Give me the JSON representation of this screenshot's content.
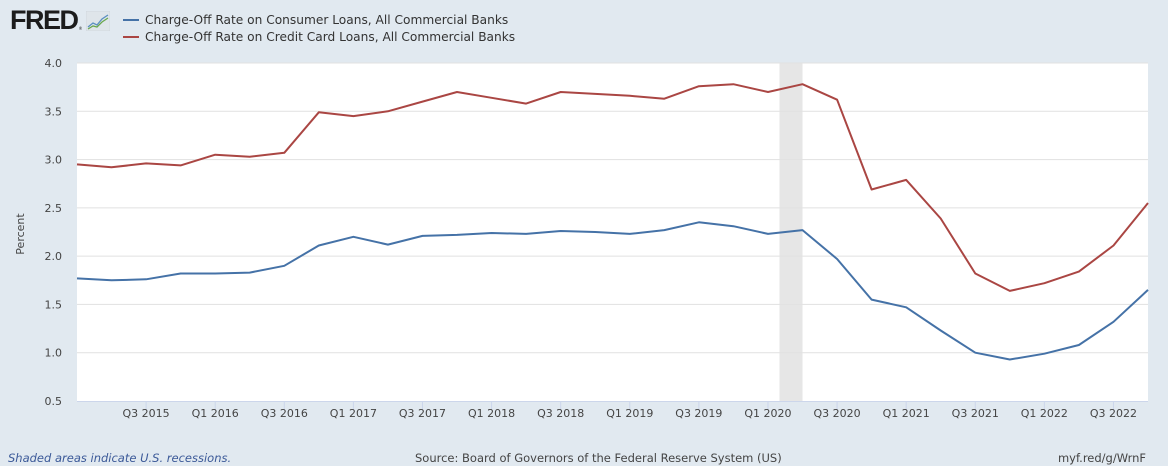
{
  "brand": {
    "logo_text": "FRED",
    "logo_reg": "®"
  },
  "colors": {
    "background": "#e1e9f0",
    "plot_bg": "#ffffff",
    "grid": "#e1e1e1",
    "recession": "#e6e6e6",
    "series_consumer": "#4572a7",
    "series_credit_card": "#aa4643"
  },
  "chart_data": {
    "type": "line",
    "title": "",
    "xlabel": "",
    "ylabel": "Percent",
    "ylim": [
      0.5,
      4.0
    ],
    "yticks": [
      0.5,
      1.0,
      1.5,
      2.0,
      2.5,
      3.0,
      3.5,
      4.0
    ],
    "ytick_labels": [
      "0.5",
      "1.0",
      "1.5",
      "2.0",
      "2.5",
      "3.0",
      "3.5",
      "4.0"
    ],
    "grid": true,
    "legend_position": "top-left",
    "x": [
      "Q1 2015",
      "Q2 2015",
      "Q3 2015",
      "Q4 2015",
      "Q1 2016",
      "Q2 2016",
      "Q3 2016",
      "Q4 2016",
      "Q1 2017",
      "Q2 2017",
      "Q3 2017",
      "Q4 2017",
      "Q1 2018",
      "Q2 2018",
      "Q3 2018",
      "Q4 2018",
      "Q1 2019",
      "Q2 2019",
      "Q3 2019",
      "Q4 2019",
      "Q1 2020",
      "Q2 2020",
      "Q3 2020",
      "Q4 2020",
      "Q1 2021",
      "Q2 2021",
      "Q3 2021",
      "Q4 2021",
      "Q1 2022",
      "Q2 2022",
      "Q3 2022",
      "Q4 2022"
    ],
    "xticks": [
      "Q3 2015",
      "Q1 2016",
      "Q3 2016",
      "Q1 2017",
      "Q3 2017",
      "Q1 2018",
      "Q3 2018",
      "Q1 2019",
      "Q3 2019",
      "Q1 2020",
      "Q3 2020",
      "Q1 2021",
      "Q3 2021",
      "Q1 2022",
      "Q3 2022"
    ],
    "recessions": [
      {
        "start": "Feb 2020",
        "end": "Apr 2020"
      }
    ],
    "series": [
      {
        "name": "Charge-Off Rate on Consumer Loans, All Commercial Banks",
        "color": "#4572a7",
        "values": [
          1.77,
          1.75,
          1.76,
          1.82,
          1.82,
          1.83,
          1.9,
          2.11,
          2.2,
          2.12,
          2.21,
          2.22,
          2.24,
          2.23,
          2.26,
          2.25,
          2.23,
          2.27,
          2.35,
          2.31,
          2.23,
          2.27,
          1.97,
          1.55,
          1.47,
          1.23,
          1.0,
          0.93,
          0.99,
          1.08,
          1.32,
          1.65
        ]
      },
      {
        "name": "Charge-Off Rate on Credit Card Loans, All Commercial Banks",
        "color": "#aa4643",
        "values": [
          2.95,
          2.92,
          2.96,
          2.94,
          3.05,
          3.03,
          3.07,
          3.49,
          3.45,
          3.5,
          3.6,
          3.7,
          3.64,
          3.58,
          3.7,
          3.68,
          3.66,
          3.63,
          3.76,
          3.78,
          3.7,
          3.78,
          3.62,
          2.69,
          2.79,
          2.39,
          1.82,
          1.64,
          1.72,
          1.84,
          2.11,
          2.55
        ]
      }
    ]
  },
  "footer": {
    "note": "Shaded areas indicate U.S. recessions.",
    "source": "Source: Board of Governors of the Federal Reserve System (US)",
    "link": "myf.red/g/WrnF"
  }
}
